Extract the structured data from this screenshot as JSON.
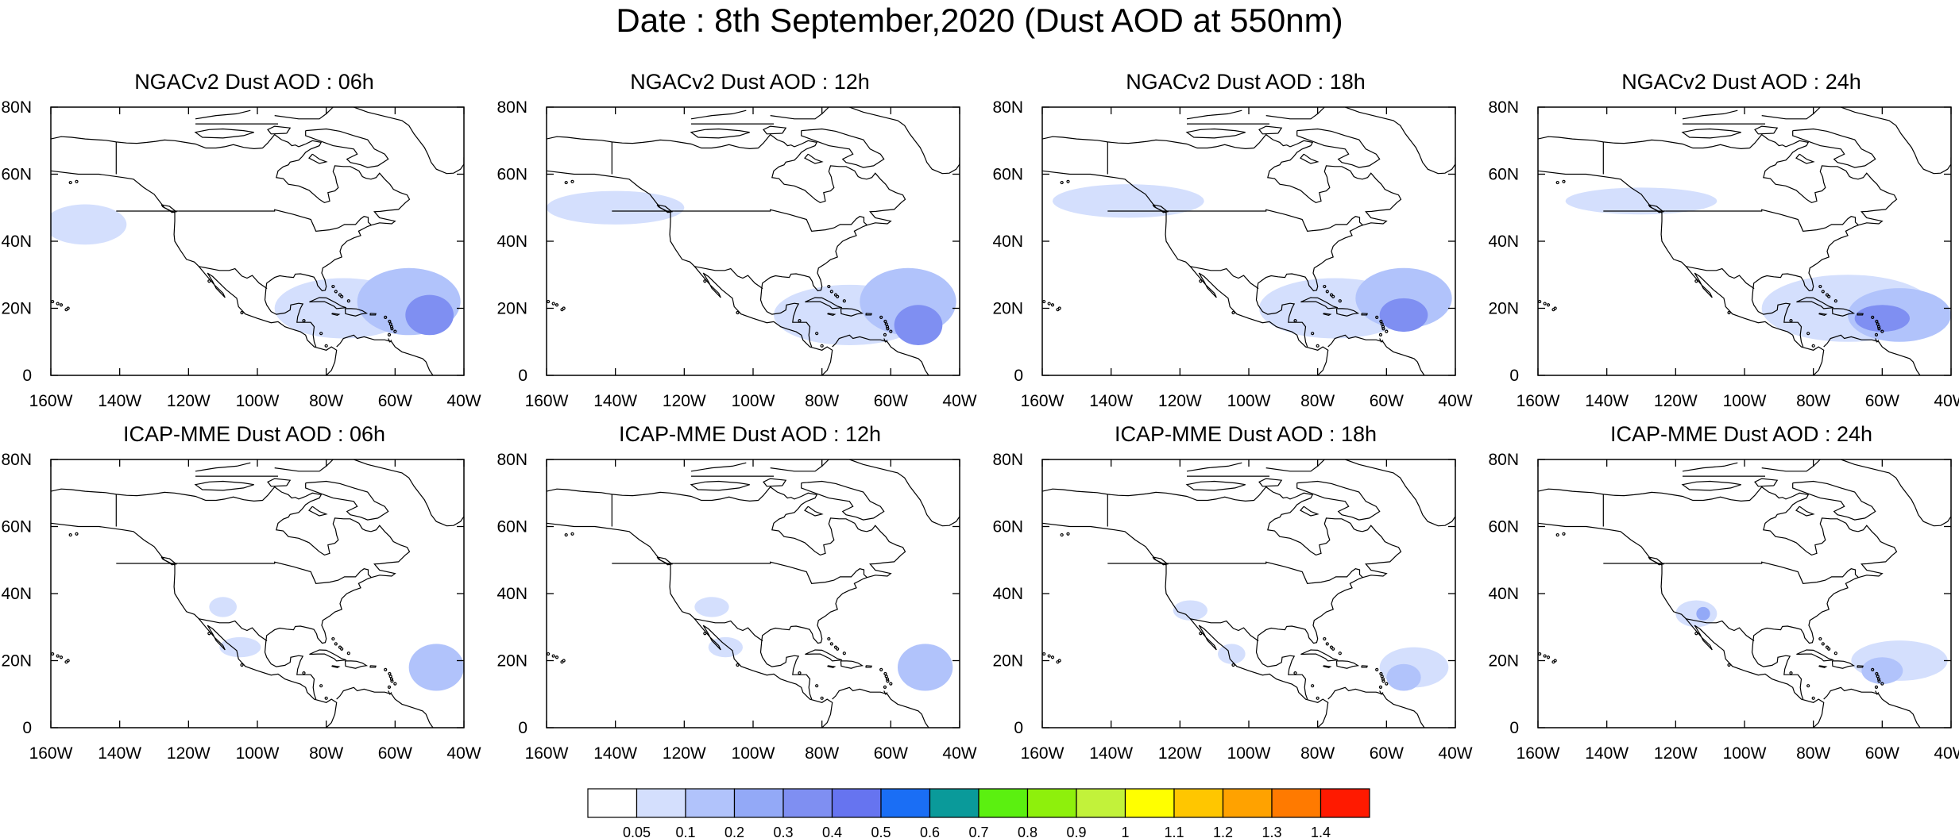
{
  "figure": {
    "title": "Date : 8th September,2020 (Dust AOD at 550nm)",
    "lat_labels": [
      "80N",
      "60N",
      "40N",
      "20N",
      "0"
    ],
    "lon_labels": [
      "160W",
      "140W",
      "120W",
      "100W",
      "80W",
      "60W",
      "40W"
    ],
    "domain": {
      "lon": [
        -160,
        -40
      ],
      "lat": [
        0,
        80
      ]
    }
  },
  "panels": [
    {
      "title": "NGACv2 Dust AOD : 06h",
      "plumes": [
        {
          "lon": -150,
          "lat": 45,
          "rx": 12,
          "ry": 6,
          "level": 1
        },
        {
          "lon": -75,
          "lat": 20,
          "rx": 20,
          "ry": 9,
          "level": 1
        },
        {
          "lon": -56,
          "lat": 22,
          "rx": 15,
          "ry": 10,
          "level": 2
        },
        {
          "lon": -50,
          "lat": 18,
          "rx": 7,
          "ry": 6,
          "level": 4
        }
      ]
    },
    {
      "title": "NGACv2 Dust AOD : 12h",
      "plumes": [
        {
          "lon": -140,
          "lat": 50,
          "rx": 20,
          "ry": 5,
          "level": 1
        },
        {
          "lon": -72,
          "lat": 18,
          "rx": 22,
          "ry": 9,
          "level": 1
        },
        {
          "lon": -55,
          "lat": 22,
          "rx": 14,
          "ry": 10,
          "level": 2
        },
        {
          "lon": -52,
          "lat": 15,
          "rx": 7,
          "ry": 6,
          "level": 4
        }
      ]
    },
    {
      "title": "NGACv2 Dust AOD : 18h",
      "plumes": [
        {
          "lon": -135,
          "lat": 52,
          "rx": 22,
          "ry": 5,
          "level": 1
        },
        {
          "lon": -75,
          "lat": 20,
          "rx": 22,
          "ry": 9,
          "level": 1
        },
        {
          "lon": -55,
          "lat": 23,
          "rx": 14,
          "ry": 9,
          "level": 2
        },
        {
          "lon": -55,
          "lat": 18,
          "rx": 7,
          "ry": 5,
          "level": 4
        }
      ]
    },
    {
      "title": "NGACv2 Dust AOD : 24h",
      "plumes": [
        {
          "lon": -130,
          "lat": 52,
          "rx": 22,
          "ry": 4,
          "level": 1
        },
        {
          "lon": -70,
          "lat": 20,
          "rx": 25,
          "ry": 10,
          "level": 1
        },
        {
          "lon": -55,
          "lat": 18,
          "rx": 15,
          "ry": 8,
          "level": 2
        },
        {
          "lon": -60,
          "lat": 17,
          "rx": 8,
          "ry": 4,
          "level": 4
        }
      ]
    },
    {
      "title": "ICAP-MME Dust AOD : 06h",
      "plumes": [
        {
          "lon": -110,
          "lat": 36,
          "rx": 4,
          "ry": 3,
          "level": 1
        },
        {
          "lon": -105,
          "lat": 24,
          "rx": 6,
          "ry": 3,
          "level": 1
        },
        {
          "lon": -48,
          "lat": 18,
          "rx": 8,
          "ry": 7,
          "level": 2
        }
      ]
    },
    {
      "title": "ICAP-MME Dust AOD : 12h",
      "plumes": [
        {
          "lon": -112,
          "lat": 36,
          "rx": 5,
          "ry": 3,
          "level": 1
        },
        {
          "lon": -108,
          "lat": 24,
          "rx": 5,
          "ry": 3,
          "level": 1
        },
        {
          "lon": -50,
          "lat": 18,
          "rx": 8,
          "ry": 7,
          "level": 2
        }
      ]
    },
    {
      "title": "ICAP-MME Dust AOD : 18h",
      "plumes": [
        {
          "lon": -117,
          "lat": 35,
          "rx": 5,
          "ry": 3,
          "level": 1
        },
        {
          "lon": -105,
          "lat": 22,
          "rx": 4,
          "ry": 3,
          "level": 1
        },
        {
          "lon": -52,
          "lat": 18,
          "rx": 10,
          "ry": 6,
          "level": 1
        },
        {
          "lon": -55,
          "lat": 15,
          "rx": 5,
          "ry": 4,
          "level": 2
        }
      ]
    },
    {
      "title": "ICAP-MME Dust AOD : 24h",
      "plumes": [
        {
          "lon": -114,
          "lat": 34,
          "rx": 6,
          "ry": 4,
          "level": 1
        },
        {
          "lon": -112,
          "lat": 34,
          "rx": 2,
          "ry": 2,
          "level": 3
        },
        {
          "lon": -55,
          "lat": 20,
          "rx": 14,
          "ry": 6,
          "level": 1
        },
        {
          "lon": -60,
          "lat": 17,
          "rx": 6,
          "ry": 4,
          "level": 2
        }
      ]
    }
  ],
  "colorbar": {
    "labels": [
      "0.05",
      "0.1",
      "0.2",
      "0.3",
      "0.4",
      "0.5",
      "0.6",
      "0.7",
      "0.8",
      "0.9",
      "1",
      "1.1",
      "1.2",
      "1.3",
      "1.4"
    ],
    "colors": [
      "#ffffff",
      "#d4dffd",
      "#b1c3fb",
      "#93a9f7",
      "#7f8ff2",
      "#6674f0",
      "#1a6ef5",
      "#0a9a9a",
      "#5bf010",
      "#8ef00c",
      "#c2f23a",
      "#ffff00",
      "#ffc600",
      "#ffa200",
      "#ff7a00",
      "#ff1a00"
    ]
  }
}
